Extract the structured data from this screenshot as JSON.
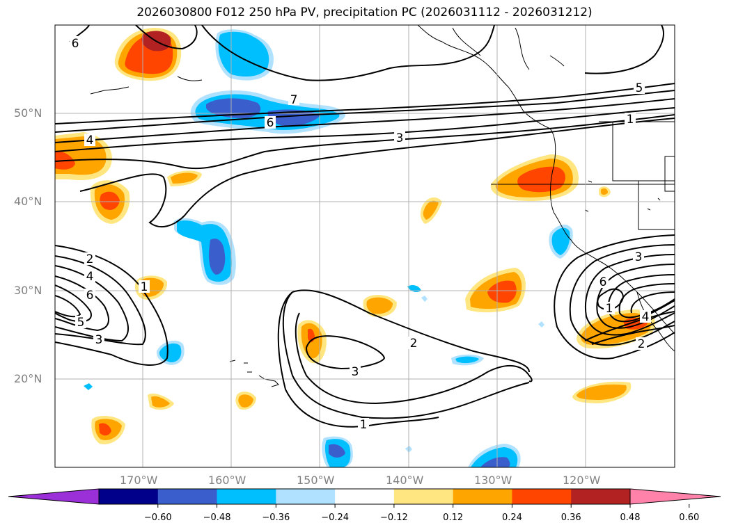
{
  "title": "2026030800 F012 250 hPa PV, precipitation PC (2026031112 - 2026031212)",
  "axes": {
    "lat_labels": [
      "50°N",
      "40°N",
      "30°N",
      "20°N"
    ],
    "lon_labels": [
      "170°W",
      "160°W",
      "150°W",
      "140°W",
      "130°W",
      "120°W"
    ],
    "lat_values": [
      50,
      40,
      30,
      20
    ],
    "lon_values": [
      -170,
      -160,
      -150,
      -140,
      -130,
      -120
    ],
    "lon_range": [
      -180,
      -110
    ],
    "lat_range": [
      10,
      60
    ],
    "grid": true
  },
  "colorbar": {
    "tick_labels": [
      "−0.60",
      "−0.48",
      "−0.36",
      "−0.24",
      "−0.12",
      "0.12",
      "0.24",
      "0.36",
      "0.48",
      "0.60"
    ],
    "bounds": [
      -0.6,
      -0.48,
      -0.36,
      -0.24,
      -0.12,
      0.12,
      0.24,
      0.36,
      0.48,
      0.6
    ],
    "colors": [
      "#9b30d9",
      "#00008b",
      "#3a5fcd",
      "#00bfff",
      "#b0e2ff",
      "#ffffff",
      "#ffe680",
      "#ffa500",
      "#ff4500",
      "#b22222",
      "#ff82ab"
    ],
    "extend": "both"
  },
  "pv_contour_labels": [
    "6",
    "7",
    "5",
    "6",
    "1",
    "4",
    "3",
    "2",
    "4",
    "6",
    "5",
    "3",
    "1",
    "2",
    "3",
    "1",
    "3",
    "6",
    "1",
    "4",
    "2"
  ]
}
